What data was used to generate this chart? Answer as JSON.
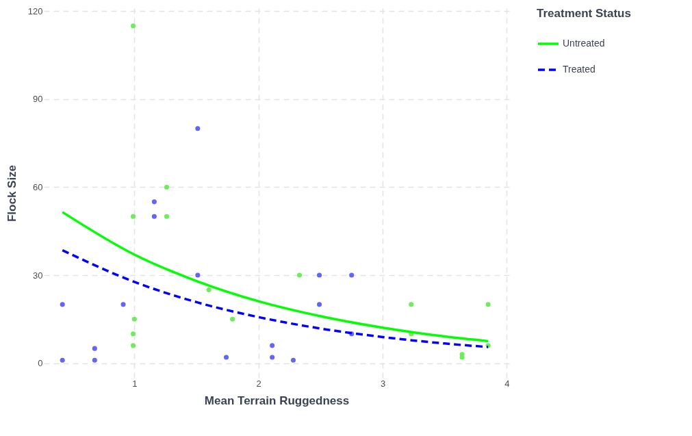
{
  "chart_data": {
    "type": "scatter",
    "xlabel": "Mean Terrain Ruggedness",
    "ylabel": "Flock Size",
    "legend_title": "Treatment Status",
    "xlim": [
      0.27,
      4.02
    ],
    "ylim": [
      -5,
      121
    ],
    "xticks": [
      {
        "value": 1,
        "label": "1"
      },
      {
        "value": 2,
        "label": "2"
      },
      {
        "value": 3,
        "label": "3"
      },
      {
        "value": 4,
        "label": "4"
      }
    ],
    "yticks": [
      0,
      30,
      60,
      90,
      120
    ],
    "grid": true,
    "legend": "right",
    "series": [
      {
        "color": "#6464f5",
        "marker": "circle",
        "x": [
          0.42,
          0.42,
          0.68,
          0.68,
          0.91,
          1.16,
          1.16,
          1.51,
          1.51,
          1.74,
          2.11,
          2.11,
          2.28,
          2.49,
          2.49,
          2.75,
          2.75
        ],
        "values": [
          20,
          1,
          5,
          1,
          20,
          55,
          50,
          80,
          30,
          2,
          6,
          2,
          1,
          30,
          20,
          30,
          10
        ]
      },
      {
        "color": "#6eec5c",
        "marker": "circle",
        "x": [
          0.99,
          0.99,
          1.0,
          0.99,
          0.99,
          1.26,
          1.26,
          1.6,
          1.79,
          2.33,
          3.23,
          3.23,
          3.64,
          3.64,
          3.85,
          3.85
        ],
        "values": [
          115,
          50,
          15,
          10,
          6,
          60,
          50,
          25,
          15,
          30,
          20,
          10,
          3,
          2,
          20,
          6
        ]
      },
      {
        "type": "line",
        "name": "Untreated",
        "color": "#00ff00",
        "line_style": "solid",
        "x": [
          0.42,
          1,
          1.5,
          2,
          2.5,
          3,
          3.5,
          3.85
        ],
        "values": [
          51.5,
          37,
          28,
          21.1,
          16,
          12.1,
          9.1,
          7.5
        ]
      },
      {
        "type": "line",
        "name": "Treated",
        "color": "#0000ff",
        "line_style": "dashed",
        "x": [
          0.42,
          1,
          1.5,
          2,
          2.5,
          3,
          3.5,
          3.85
        ],
        "values": [
          38.5,
          27.7,
          20.8,
          15.7,
          11.8,
          8.9,
          6.7,
          5.5
        ]
      }
    ]
  }
}
